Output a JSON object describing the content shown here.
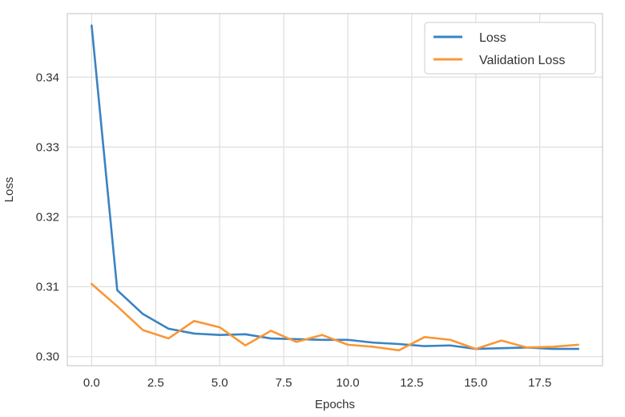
{
  "chart_data": {
    "type": "line",
    "title": "",
    "xlabel": "Epochs",
    "ylabel": "Loss",
    "xlim": [
      -0.95,
      19.95
    ],
    "ylim": [
      0.2987,
      0.3491
    ],
    "xticks": [
      0.0,
      2.5,
      5.0,
      7.5,
      10.0,
      12.5,
      15.0,
      17.5
    ],
    "xtick_labels": [
      "0.0",
      "2.5",
      "5.0",
      "7.5",
      "10.0",
      "12.5",
      "15.0",
      "17.5"
    ],
    "yticks": [
      0.3,
      0.31,
      0.32,
      0.33,
      0.34
    ],
    "ytick_labels": [
      "0.30",
      "0.31",
      "0.32",
      "0.33",
      "0.34"
    ],
    "grid": true,
    "legend_position": "top-right",
    "x": [
      0,
      1,
      2,
      3,
      4,
      5,
      6,
      7,
      8,
      9,
      10,
      11,
      12,
      13,
      14,
      15,
      16,
      17,
      18,
      19
    ],
    "series": [
      {
        "name": "Loss",
        "color": "#3a83c2",
        "values": [
          0.3474,
          0.3095,
          0.3061,
          0.304,
          0.3033,
          0.3031,
          0.3032,
          0.3026,
          0.3025,
          0.3024,
          0.3024,
          0.302,
          0.3018,
          0.3015,
          0.3016,
          0.3011,
          0.3012,
          0.3013,
          0.3011,
          0.3011
        ]
      },
      {
        "name": "Validation Loss",
        "color": "#f99738",
        "values": [
          0.3104,
          0.3072,
          0.3038,
          0.3026,
          0.3051,
          0.3042,
          0.3016,
          0.3037,
          0.3021,
          0.3031,
          0.3017,
          0.3014,
          0.3009,
          0.3028,
          0.3024,
          0.3011,
          0.3023,
          0.3013,
          0.3014,
          0.3017
        ]
      }
    ]
  }
}
